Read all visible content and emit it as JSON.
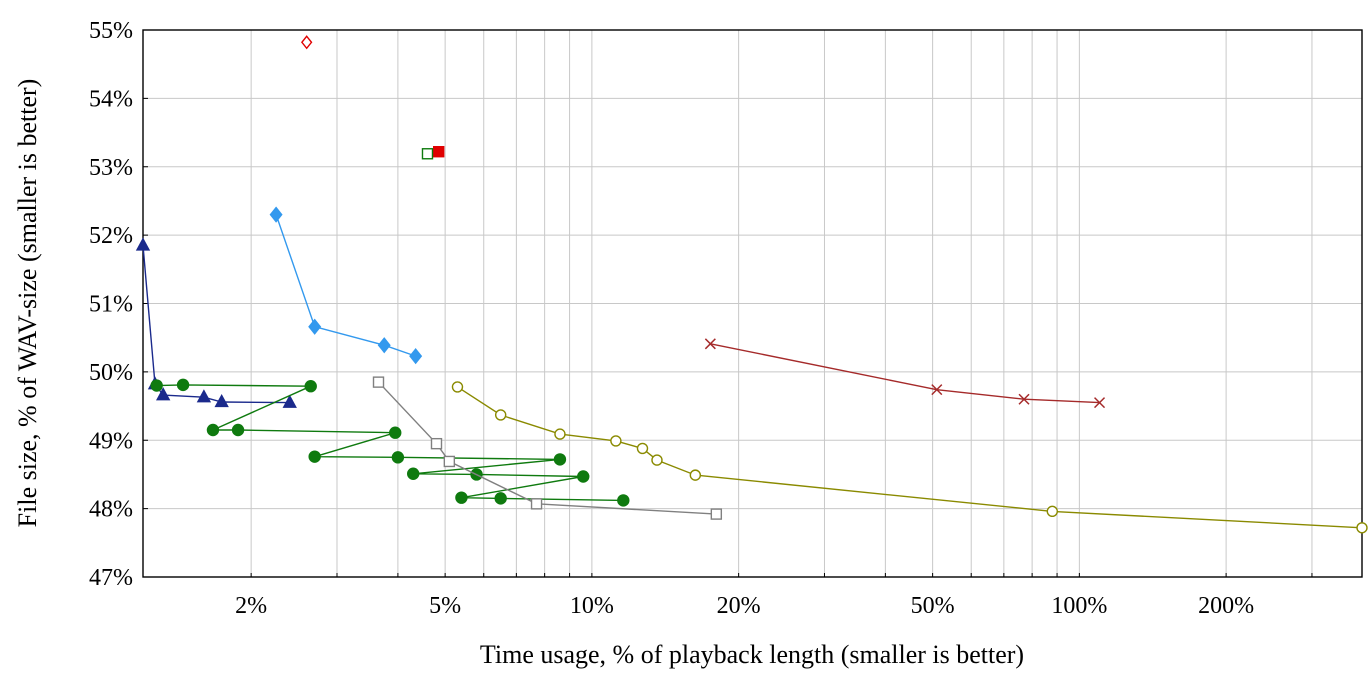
{
  "chart_data": {
    "type": "scatter",
    "xlabel": "Time usage, % of playback length (smaller is better)",
    "ylabel": "File size, % of WAV-size (smaller is better)",
    "x_scale": "log",
    "xlim": [
      1.2,
      380
    ],
    "ylim": [
      47,
      55
    ],
    "grid": true,
    "x_ticks": [
      {
        "value": 2,
        "label": "2%"
      },
      {
        "value": 5,
        "label": "5%"
      },
      {
        "value": 10,
        "label": "10%"
      },
      {
        "value": 20,
        "label": "20%"
      },
      {
        "value": 50,
        "label": "50%"
      },
      {
        "value": 100,
        "label": "100%"
      },
      {
        "value": 200,
        "label": "200%"
      }
    ],
    "y_ticks": [
      {
        "value": 47,
        "label": "47%"
      },
      {
        "value": 48,
        "label": "48%"
      },
      {
        "value": 49,
        "label": "49%"
      },
      {
        "value": 50,
        "label": "50%"
      },
      {
        "value": 51,
        "label": "51%"
      },
      {
        "value": 52,
        "label": "52%"
      },
      {
        "value": 53,
        "label": "53%"
      },
      {
        "value": 54,
        "label": "54%"
      },
      {
        "value": 55,
        "label": "55%"
      }
    ],
    "series": [
      {
        "color": "#1b2a8c",
        "marker": "triangle",
        "filled": true,
        "line": true,
        "points": [
          [
            1.2,
            51.85
          ],
          [
            1.27,
            49.82
          ],
          [
            1.32,
            49.66
          ],
          [
            1.6,
            49.63
          ],
          [
            1.74,
            49.56
          ],
          [
            2.4,
            49.55
          ]
        ]
      },
      {
        "color": "#0f7a0f",
        "marker": "circle",
        "filled": true,
        "line": true,
        "points": [
          [
            1.28,
            49.8
          ],
          [
            1.45,
            49.81
          ],
          [
            2.65,
            49.79
          ],
          [
            1.67,
            49.15
          ],
          [
            1.88,
            49.15
          ],
          [
            3.95,
            49.11
          ],
          [
            2.7,
            48.76
          ],
          [
            4.0,
            48.75
          ],
          [
            8.6,
            48.72
          ],
          [
            4.3,
            48.51
          ],
          [
            5.8,
            48.5
          ],
          [
            9.6,
            48.47
          ],
          [
            5.4,
            48.16
          ],
          [
            6.5,
            48.15
          ],
          [
            11.6,
            48.12
          ]
        ]
      },
      {
        "color": "#3399ee",
        "marker": "diamond",
        "filled": true,
        "line": true,
        "points": [
          [
            2.25,
            52.3
          ],
          [
            2.7,
            50.66
          ],
          [
            3.75,
            50.39
          ],
          [
            4.35,
            50.23
          ]
        ]
      },
      {
        "color": "#808080",
        "marker": "square",
        "filled": false,
        "line": true,
        "points": [
          [
            3.65,
            49.85
          ],
          [
            4.8,
            48.95
          ],
          [
            5.1,
            48.69
          ],
          [
            7.7,
            48.07
          ],
          [
            18.0,
            47.92
          ]
        ]
      },
      {
        "color": "#8a8a00",
        "marker": "circle",
        "filled": false,
        "line": true,
        "points": [
          [
            5.3,
            49.78
          ],
          [
            6.5,
            49.37
          ],
          [
            8.6,
            49.09
          ],
          [
            11.2,
            48.99
          ],
          [
            12.7,
            48.88
          ],
          [
            13.6,
            48.71
          ],
          [
            16.3,
            48.49
          ],
          [
            88.0,
            47.96
          ],
          [
            380.0,
            47.72
          ]
        ]
      },
      {
        "color": "#a52a2a",
        "marker": "cross",
        "filled": false,
        "line": true,
        "points": [
          [
            17.5,
            50.41
          ],
          [
            51.0,
            49.74
          ],
          [
            77.0,
            49.6
          ],
          [
            110.0,
            49.55
          ]
        ]
      },
      {
        "color": "#e00000",
        "marker": "square",
        "filled": true,
        "line": false,
        "points": [
          [
            4.85,
            53.22
          ]
        ]
      },
      {
        "color": "#0f7a0f",
        "marker": "square",
        "filled": false,
        "line": false,
        "points": [
          [
            4.6,
            53.19
          ]
        ]
      },
      {
        "color": "#e00000",
        "marker": "diamond",
        "filled": false,
        "line": false,
        "points": [
          [
            2.6,
            54.82
          ]
        ]
      }
    ]
  }
}
